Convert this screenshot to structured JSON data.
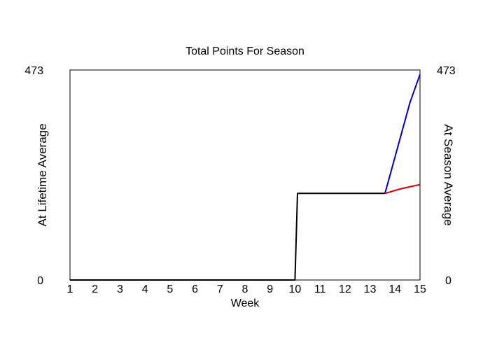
{
  "chart_data": {
    "type": "line",
    "title": "Total Points For Season",
    "xlabel": "Week",
    "ylabel_left": "At Lifetime Average",
    "ylabel_right": "At Season Average",
    "categories": [
      "1",
      "2",
      "3",
      "4",
      "5",
      "6",
      "7",
      "8",
      "9",
      "10",
      "11",
      "12",
      "13",
      "14",
      "15"
    ],
    "xlim": [
      1,
      15
    ],
    "ylim": [
      0,
      473
    ],
    "y_ticks_left": [
      "0",
      "473"
    ],
    "y_ticks_right": [
      "0",
      "473"
    ],
    "grid": false,
    "series": [
      {
        "color": "#000000",
        "x": [
          1,
          10,
          10.1,
          13.6
        ],
        "y": [
          0,
          0,
          195,
          195
        ]
      },
      {
        "color": "#0000cc",
        "x": [
          13.6,
          14.6,
          15
        ],
        "y": [
          195,
          400,
          463
        ]
      },
      {
        "color": "#dd0000",
        "x": [
          13.6,
          14.2,
          15
        ],
        "y": [
          195,
          205,
          215
        ]
      }
    ]
  },
  "colors": {
    "left_label": "#0000cc",
    "right_label": "#dd0000",
    "axis": "#000000"
  }
}
